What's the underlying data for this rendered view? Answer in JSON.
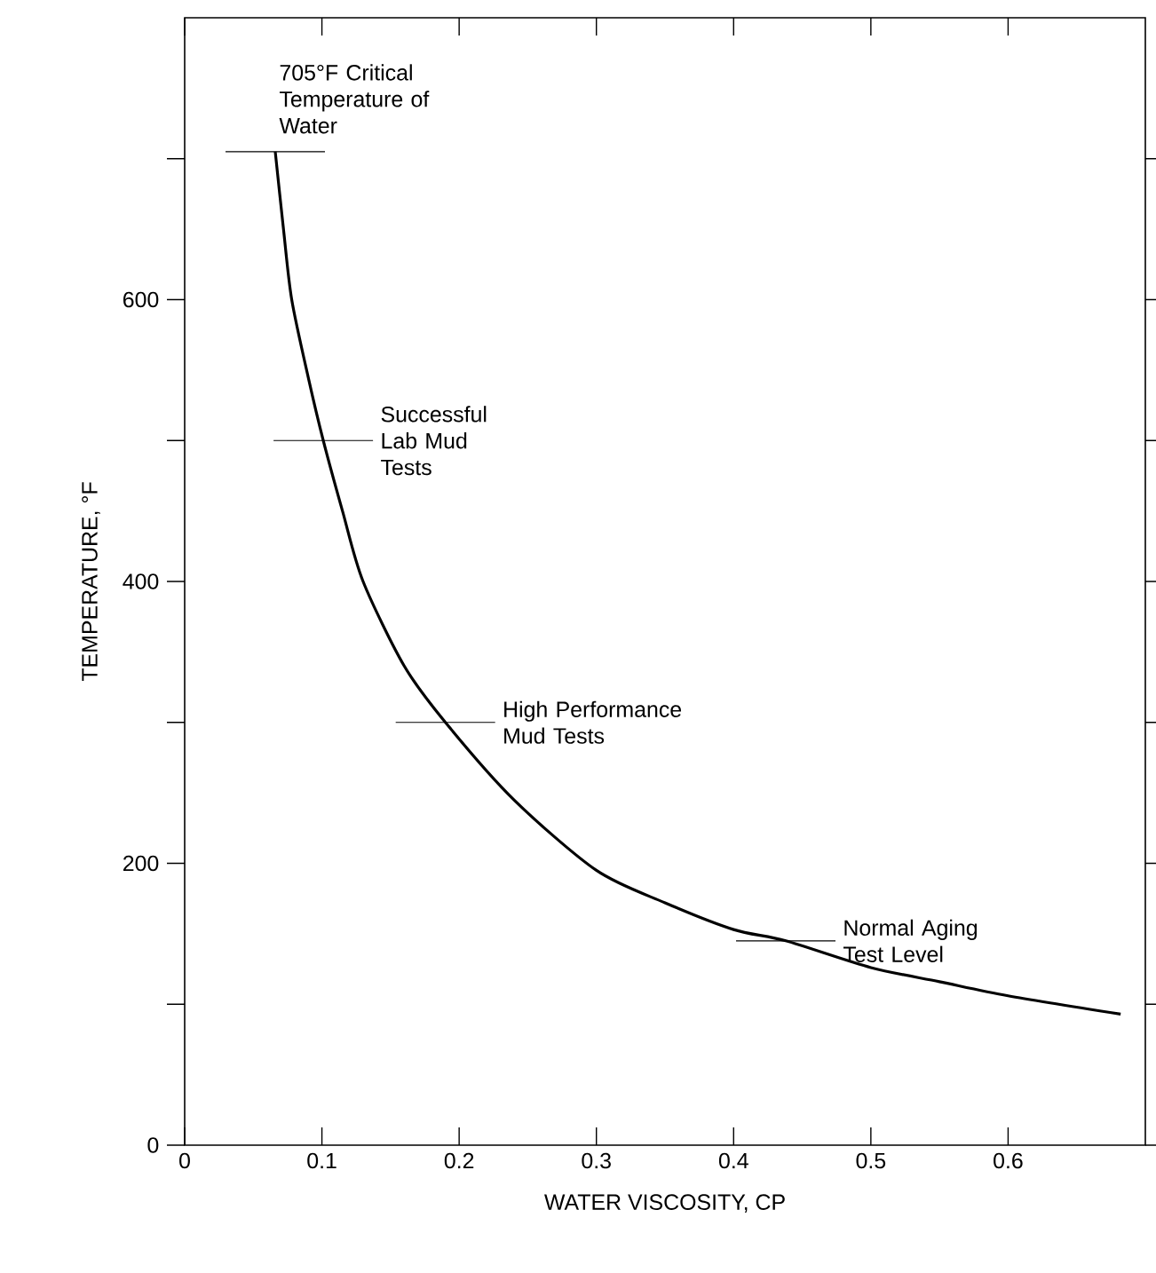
{
  "chart_data": {
    "type": "line",
    "xlabel": "WATER VISCOSITY, CP",
    "ylabel": "TEMPERATURE, °F",
    "xlim": [
      0,
      0.7
    ],
    "ylim": [
      0,
      800
    ],
    "xticks": [
      0,
      0.1,
      0.2,
      0.3,
      0.4,
      0.5,
      0.6
    ],
    "yticks": [
      0,
      {
        "value": 100,
        "label": null
      },
      200,
      {
        "value": 300,
        "label": null
      },
      400,
      {
        "value": 500,
        "label": null
      },
      600,
      {
        "value": 700,
        "label": null
      }
    ],
    "series": [
      {
        "color": "#000000",
        "x": [
          0.066,
          0.072,
          0.078,
          0.09,
          0.101,
          0.115,
          0.13,
          0.16,
          0.19,
          0.24,
          0.3,
          0.35,
          0.4,
          0.438,
          0.5,
          0.55,
          0.6,
          0.682
        ],
        "values": [
          705,
          650,
          600,
          545,
          500,
          450,
          400,
          340,
          300,
          245,
          195,
          172,
          153,
          145,
          126,
          116,
          106,
          93
        ]
      }
    ],
    "annotations": [
      {
        "text": "705°F Critical Temperature of Water",
        "x": 0.066,
        "y": 705
      },
      {
        "text": "Successful Lab Mud Tests",
        "x": 0.101,
        "y": 500
      },
      {
        "text": "High Performance Mud Tests",
        "x": 0.19,
        "y": 300
      },
      {
        "text": "Normal Aging Test Level",
        "x": 0.438,
        "y": 145
      }
    ]
  }
}
